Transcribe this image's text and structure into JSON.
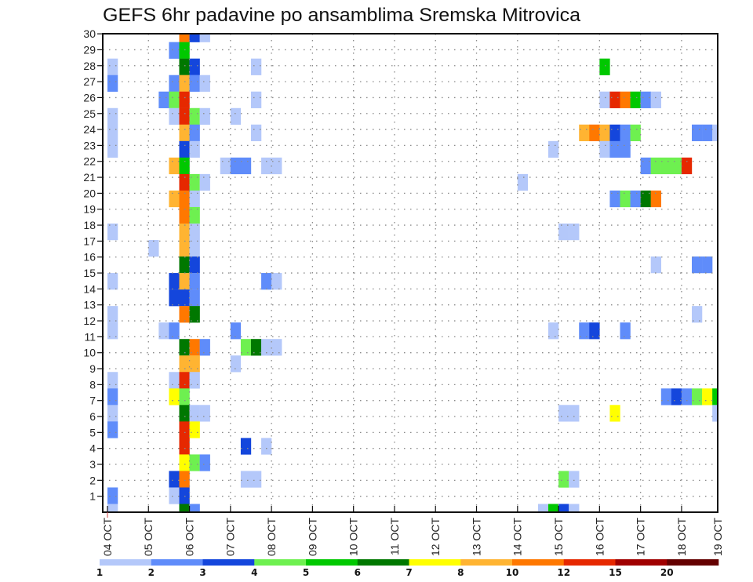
{
  "chart_data": {
    "type": "heatmap",
    "title": "GEFS 6hr padavine po ansamblima Sremska Mitrovica",
    "xlabel": "",
    "ylabel": "",
    "grid": true,
    "x_tick_labels": [
      "04 OCT",
      "05 OCT",
      "06 OCT",
      "07 OCT",
      "08 OCT",
      "09 OCT",
      "10 OCT",
      "11 OCT",
      "12 OCT",
      "13 OCT",
      "14 OCT",
      "15 OCT",
      "16 OCT",
      "17 OCT",
      "18 OCT",
      "19 OCT"
    ],
    "y_tick_labels": [
      "1",
      "2",
      "3",
      "4",
      "5",
      "6",
      "7",
      "8",
      "9",
      "10",
      "11",
      "12",
      "13",
      "14",
      "15",
      "16",
      "17",
      "18",
      "19",
      "20",
      "21",
      "22",
      "23",
      "24",
      "25",
      "26",
      "27",
      "28",
      "29",
      "30"
    ],
    "colorbar": {
      "placement": "bottom",
      "labels": [
        "1",
        "2",
        "3",
        "4",
        "5",
        "6",
        "7",
        "8",
        "10",
        "12",
        "15",
        "20"
      ],
      "colors": [
        "#b4c8fa",
        "#5f8cfa",
        "#1446dc",
        "#6ef050",
        "#00c800",
        "#007800",
        "#ffff00",
        "#ffb432",
        "#ff7800",
        "#e62800",
        "#a00000",
        "#640000"
      ]
    },
    "cells_format": [
      "member",
      "time_step_6h",
      "color_level"
    ],
    "cells": [
      [
        30,
        7,
        8
      ],
      [
        30,
        8,
        2
      ],
      [
        30,
        9,
        0
      ],
      [
        29,
        6,
        1
      ],
      [
        29,
        7,
        4
      ],
      [
        28,
        0,
        0
      ],
      [
        28,
        7,
        5
      ],
      [
        28,
        8,
        2
      ],
      [
        28,
        14,
        0
      ],
      [
        28,
        48,
        4
      ],
      [
        27,
        0,
        1
      ],
      [
        27,
        6,
        1
      ],
      [
        27,
        7,
        7
      ],
      [
        27,
        8,
        1
      ],
      [
        27,
        9,
        0
      ],
      [
        26,
        5,
        1
      ],
      [
        26,
        6,
        3
      ],
      [
        26,
        7,
        9
      ],
      [
        26,
        14,
        0
      ],
      [
        26,
        48,
        0
      ],
      [
        26,
        49,
        9
      ],
      [
        26,
        50,
        8
      ],
      [
        26,
        51,
        4
      ],
      [
        26,
        52,
        1
      ],
      [
        26,
        53,
        0
      ],
      [
        25,
        0,
        0
      ],
      [
        25,
        6,
        0
      ],
      [
        25,
        7,
        9
      ],
      [
        25,
        8,
        3
      ],
      [
        25,
        9,
        0
      ],
      [
        25,
        12,
        0
      ],
      [
        24,
        0,
        0
      ],
      [
        24,
        7,
        7
      ],
      [
        24,
        8,
        1
      ],
      [
        24,
        14,
        0
      ],
      [
        24,
        46,
        7
      ],
      [
        24,
        47,
        8
      ],
      [
        24,
        48,
        7
      ],
      [
        24,
        49,
        2
      ],
      [
        24,
        50,
        1
      ],
      [
        24,
        51,
        3
      ],
      [
        24,
        57,
        1
      ],
      [
        24,
        58,
        1
      ],
      [
        24,
        59,
        0
      ],
      [
        23,
        0,
        0
      ],
      [
        23,
        7,
        2
      ],
      [
        23,
        8,
        0
      ],
      [
        23,
        43,
        0
      ],
      [
        23,
        48,
        0
      ],
      [
        23,
        49,
        1
      ],
      [
        23,
        50,
        1
      ],
      [
        22,
        6,
        7
      ],
      [
        22,
        7,
        4
      ],
      [
        22,
        11,
        0
      ],
      [
        22,
        12,
        1
      ],
      [
        22,
        13,
        1
      ],
      [
        22,
        15,
        0
      ],
      [
        22,
        16,
        0
      ],
      [
        22,
        52,
        1
      ],
      [
        22,
        53,
        3
      ],
      [
        22,
        54,
        3
      ],
      [
        22,
        55,
        3
      ],
      [
        22,
        56,
        9
      ],
      [
        21,
        7,
        9
      ],
      [
        21,
        8,
        3
      ],
      [
        21,
        9,
        0
      ],
      [
        21,
        40,
        0
      ],
      [
        20,
        6,
        7
      ],
      [
        20,
        7,
        8
      ],
      [
        20,
        8,
        0
      ],
      [
        20,
        49,
        1
      ],
      [
        20,
        50,
        3
      ],
      [
        20,
        51,
        1
      ],
      [
        20,
        52,
        5
      ],
      [
        20,
        53,
        8
      ],
      [
        19,
        7,
        8
      ],
      [
        19,
        8,
        3
      ],
      [
        18,
        0,
        0
      ],
      [
        18,
        7,
        7
      ],
      [
        18,
        8,
        0
      ],
      [
        18,
        44,
        0
      ],
      [
        18,
        45,
        0
      ],
      [
        17,
        4,
        0
      ],
      [
        17,
        7,
        7
      ],
      [
        17,
        8,
        0
      ],
      [
        16,
        7,
        5
      ],
      [
        16,
        8,
        2
      ],
      [
        16,
        53,
        0
      ],
      [
        16,
        57,
        1
      ],
      [
        16,
        58,
        1
      ],
      [
        15,
        0,
        0
      ],
      [
        15,
        6,
        2
      ],
      [
        15,
        7,
        7
      ],
      [
        15,
        8,
        1
      ],
      [
        15,
        15,
        1
      ],
      [
        15,
        16,
        0
      ],
      [
        14,
        6,
        2
      ],
      [
        14,
        7,
        2
      ],
      [
        14,
        8,
        1
      ],
      [
        13,
        0,
        0
      ],
      [
        13,
        7,
        8
      ],
      [
        13,
        8,
        5
      ],
      [
        13,
        57,
        0
      ],
      [
        12,
        0,
        0
      ],
      [
        12,
        5,
        0
      ],
      [
        12,
        6,
        1
      ],
      [
        12,
        12,
        1
      ],
      [
        12,
        43,
        0
      ],
      [
        12,
        46,
        1
      ],
      [
        12,
        47,
        2
      ],
      [
        12,
        50,
        1
      ],
      [
        11,
        7,
        5
      ],
      [
        11,
        8,
        8
      ],
      [
        11,
        9,
        1
      ],
      [
        11,
        13,
        3
      ],
      [
        11,
        14,
        5
      ],
      [
        11,
        15,
        0
      ],
      [
        11,
        16,
        0
      ],
      [
        10,
        7,
        7
      ],
      [
        10,
        8,
        7
      ],
      [
        10,
        12,
        0
      ],
      [
        9,
        0,
        0
      ],
      [
        9,
        6,
        0
      ],
      [
        9,
        7,
        9
      ],
      [
        9,
        8,
        0
      ],
      [
        8,
        0,
        1
      ],
      [
        8,
        6,
        6
      ],
      [
        8,
        7,
        3
      ],
      [
        8,
        54,
        1
      ],
      [
        8,
        55,
        2
      ],
      [
        8,
        56,
        1
      ],
      [
        8,
        57,
        3
      ],
      [
        8,
        58,
        6
      ],
      [
        8,
        59,
        4
      ],
      [
        7,
        0,
        0
      ],
      [
        7,
        7,
        5
      ],
      [
        7,
        8,
        0
      ],
      [
        7,
        9,
        0
      ],
      [
        7,
        44,
        0
      ],
      [
        7,
        45,
        0
      ],
      [
        7,
        49,
        6
      ],
      [
        7,
        59,
        0
      ],
      [
        6,
        0,
        1
      ],
      [
        6,
        7,
        9
      ],
      [
        6,
        8,
        6
      ],
      [
        5,
        7,
        9
      ],
      [
        5,
        13,
        2
      ],
      [
        5,
        15,
        0
      ],
      [
        4,
        7,
        6
      ],
      [
        4,
        8,
        3
      ],
      [
        4,
        9,
        1
      ],
      [
        3,
        6,
        2
      ],
      [
        3,
        7,
        8
      ],
      [
        3,
        13,
        0
      ],
      [
        3,
        14,
        0
      ],
      [
        3,
        44,
        3
      ],
      [
        3,
        45,
        0
      ],
      [
        2,
        0,
        1
      ],
      [
        2,
        6,
        0
      ],
      [
        2,
        7,
        2
      ],
      [
        1,
        0,
        0
      ],
      [
        1,
        7,
        5
      ],
      [
        1,
        8,
        1
      ],
      [
        1,
        42,
        0
      ],
      [
        1,
        43,
        4
      ],
      [
        1,
        44,
        2
      ],
      [
        1,
        45,
        0
      ]
    ]
  }
}
